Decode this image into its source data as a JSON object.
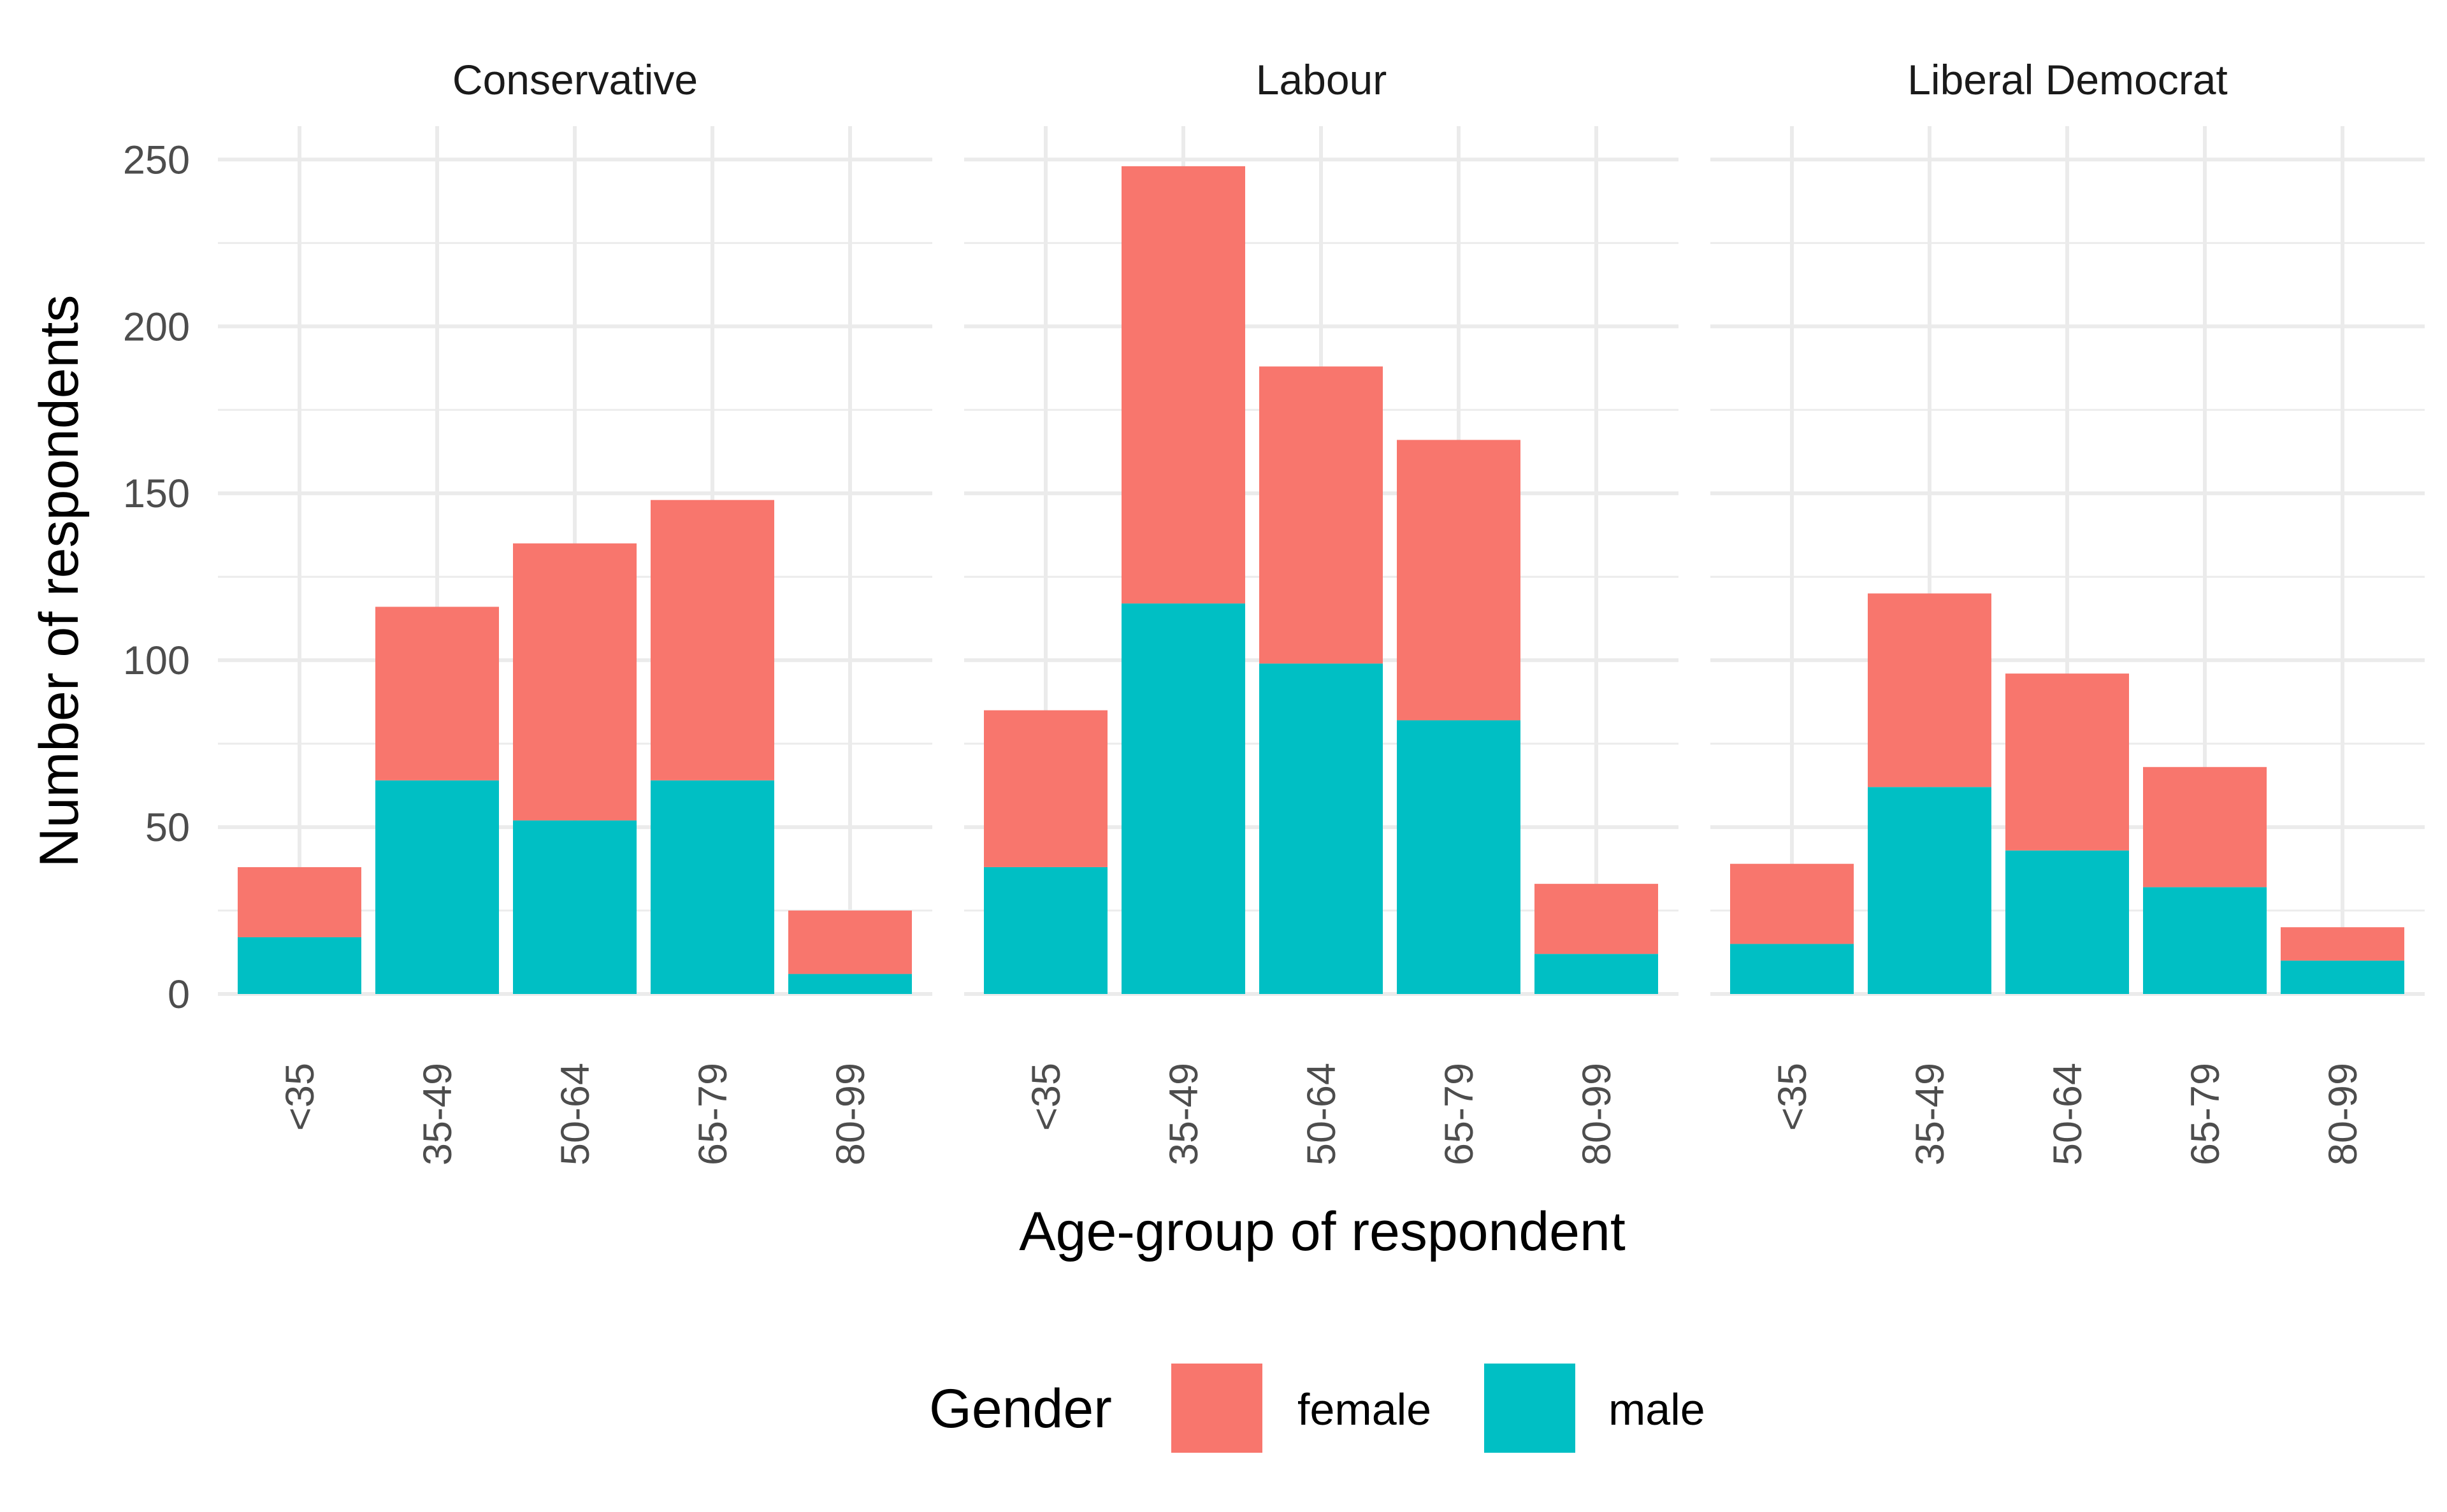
{
  "chart_data": {
    "type": "bar",
    "stacked": true,
    "facets": [
      "Conservative",
      "Labour",
      "Liberal Democrat"
    ],
    "categories": [
      "<35",
      "35-49",
      "50-64",
      "65-79",
      "80-99"
    ],
    "series": [
      {
        "name": "female",
        "color": "#F8766D",
        "values": {
          "Conservative": [
            21,
            52,
            83,
            84,
            19
          ],
          "Labour": [
            47,
            131,
            89,
            84,
            21
          ],
          "Liberal Democrat": [
            24,
            58,
            53,
            36,
            10
          ]
        }
      },
      {
        "name": "male",
        "color": "#00BFC4",
        "values": {
          "Conservative": [
            17,
            64,
            52,
            64,
            6
          ],
          "Labour": [
            38,
            117,
            99,
            82,
            12
          ],
          "Liberal Democrat": [
            15,
            62,
            43,
            32,
            10
          ]
        }
      }
    ],
    "xlabel": "Age-group of respondent",
    "ylabel": "Number of respondents",
    "ylim": [
      0,
      260
    ],
    "yticks": [
      0,
      50,
      100,
      150,
      200,
      250
    ],
    "grid": true,
    "legend": {
      "title": "Gender",
      "position": "bottom"
    }
  }
}
